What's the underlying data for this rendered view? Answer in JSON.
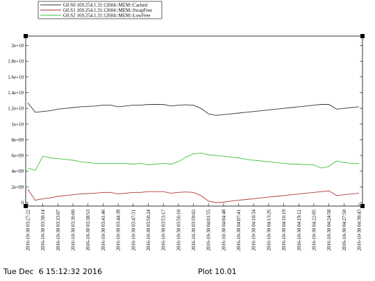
{
  "chart_data": {
    "type": "line",
    "categories": [
      "2016-10-30 03:27:22",
      null,
      "2016-10-30 03:30:14",
      null,
      "2016-10-30 03:33:07",
      null,
      "2016-10-30 03:36:00",
      null,
      "2016-10-30 03:38:53",
      null,
      "2016-10-30 03:41:46",
      null,
      "2016-10-30 03:44:38",
      null,
      "2016-10-30 03:47:31",
      null,
      "2016-10-30 03:50:24",
      null,
      "2016-10-30 03:53:17",
      null,
      "2016-10-30 03:56:10",
      null,
      "2016-10-30 03:59:02",
      null,
      "2016-10-30 04:01:55",
      null,
      "2016-10-30 04:04:48",
      null,
      "2016-10-30 04:07:41",
      null,
      "2016-10-30 04:10:34",
      null,
      "2016-10-30 04:13:26",
      null,
      "2016-10-30 04:16:19",
      null,
      "2016-10-30 04:19:12",
      null,
      "2016-10-30 04:22:05",
      null,
      "2016-10-30 04:24:58",
      null,
      "2016-10-30 04:27:50",
      null,
      "2016-10-30 04:30:43"
    ],
    "series": [
      {
        "name": "G0.S0 169.254.1.31:12604::MEM::Cached",
        "color": "#333333",
        "values": [
          12700000000,
          11500000000,
          11600000000,
          11700000000,
          11900000000,
          12000000000,
          12100000000,
          12200000000,
          12250000000,
          12300000000,
          12400000000,
          12400000000,
          12200000000,
          12300000000,
          12400000000,
          12400000000,
          12500000000,
          12500000000,
          12500000000,
          12300000000,
          12400000000,
          12450000000,
          12400000000,
          12000000000,
          11300000000,
          11100000000,
          11200000000,
          11300000000,
          11400000000,
          11500000000,
          11600000000,
          11700000000,
          11800000000,
          11900000000,
          12000000000,
          12100000000,
          12200000000,
          12300000000,
          12400000000,
          12500000000,
          12500000000,
          11900000000,
          12000000000,
          12100000000,
          12200000000
        ]
      },
      {
        "name": "G0.S1 169.254.1.31:12604::MEM::SwapFree",
        "color": "#b03838",
        "values": [
          1700000000,
          300000000,
          500000000,
          600000000,
          800000000,
          900000000,
          1000000000,
          1100000000,
          1150000000,
          1200000000,
          1300000000,
          1300000000,
          1100000000,
          1200000000,
          1300000000,
          1300000000,
          1400000000,
          1400000000,
          1400000000,
          1200000000,
          1300000000,
          1350000000,
          1300000000,
          900000000,
          200000000,
          0,
          50000000,
          200000000,
          300000000,
          400000000,
          500000000,
          600000000,
          700000000,
          800000000,
          900000000,
          1000000000,
          1100000000,
          1200000000,
          1300000000,
          1400000000,
          1500000000,
          900000000,
          1000000000,
          1100000000,
          1200000000
        ]
      },
      {
        "name": "G0.S2 169.254.1.31:12604::MEM::LowFree",
        "color": "#40c040",
        "values": [
          4400000000,
          4100000000,
          5900000000,
          5700000000,
          5600000000,
          5500000000,
          5400000000,
          5200000000,
          5100000000,
          5000000000,
          5000000000,
          5000000000,
          5000000000,
          5000000000,
          4900000000,
          5000000000,
          4800000000,
          4900000000,
          5000000000,
          4900000000,
          5200000000,
          5800000000,
          6200000000,
          6300000000,
          6100000000,
          6000000000,
          5900000000,
          5800000000,
          5700000000,
          5500000000,
          5400000000,
          5300000000,
          5200000000,
          5100000000,
          5000000000,
          4900000000,
          4900000000,
          4800000000,
          4800000000,
          4400000000,
          4600000000,
          5300000000,
          5100000000,
          5000000000,
          5000000000
        ]
      }
    ],
    "ylim": [
      -440000000,
      21200000000
    ],
    "yticks": [
      0,
      {
        "value": 2000000000,
        "label": "2e+09"
      },
      {
        "value": 4000000000,
        "label": "4e+09"
      },
      {
        "value": 6000000000,
        "label": "6e+09"
      },
      {
        "value": 8000000000,
        "label": "8e+09"
      },
      {
        "value": 10000000000,
        "label": "1e+10"
      },
      {
        "value": 12000000000,
        "label": "1.2e+10"
      },
      {
        "value": 14000000000,
        "label": "1.4e+10"
      },
      {
        "value": 16000000000,
        "label": "1.6e+10"
      },
      {
        "value": 18000000000,
        "label": "1.8e+10"
      },
      {
        "value": 20000000000,
        "label": "2e+10"
      }
    ],
    "grid": false,
    "legend": "top-left",
    "annotations": [
      "Tue Dec  6 15:12:32 2016",
      "Plot 10.01"
    ]
  }
}
